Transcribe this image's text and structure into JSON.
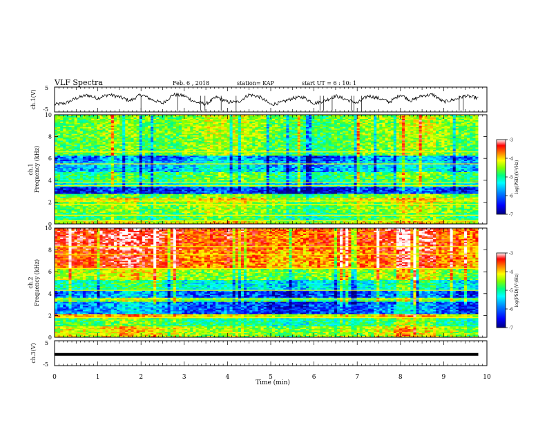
{
  "header": {
    "title": "VLF Spectra",
    "date": "Feb. 6 , 2018",
    "station": "station= KAP",
    "start_time": "start UT = 6 : 10: 1"
  },
  "colors": {
    "spectrogram_ramp": [
      "#000080",
      "#0000ff",
      "#0080ff",
      "#00ffff",
      "#00ff80",
      "#80ff00",
      "#ffff00",
      "#ff8000",
      "#ff0000",
      "#ffffff"
    ],
    "trace": "#000000"
  },
  "chart_data": [
    {
      "id": "ch1-voltage",
      "type": "line",
      "ylabel": "ch.1(V)",
      "ylim": [
        -5,
        5
      ],
      "yticks": [
        "5",
        "-5"
      ],
      "xlim": [
        0,
        10
      ],
      "x_min": [
        0,
        0.25,
        0.5,
        0.75,
        1.0,
        1.25,
        1.5,
        1.75,
        2.0,
        2.25,
        2.5,
        2.75,
        3.0,
        3.25,
        3.5,
        3.75,
        4.0,
        4.25,
        4.5,
        4.75,
        5.0,
        5.25,
        5.5,
        5.75,
        6.0,
        6.25,
        6.5,
        6.75,
        7.0,
        7.25,
        7.5,
        7.75,
        8.0,
        8.25,
        8.5,
        8.75,
        9.0,
        9.25,
        9.5,
        9.8
      ],
      "y_volts": [
        -2.0,
        -1.5,
        0.5,
        1.8,
        0.5,
        2.0,
        1.0,
        -0.5,
        2.0,
        0.0,
        -1.5,
        2.0,
        1.5,
        -1.0,
        -1.8,
        1.0,
        -1.0,
        -1.0,
        2.0,
        1.0,
        -2.0,
        -1.2,
        0.5,
        1.0,
        -1.5,
        -0.5,
        1.5,
        0.0,
        -1.5,
        1.5,
        0.5,
        -1.0,
        2.0,
        -0.5,
        1.5,
        2.0,
        -1.0,
        0.0,
        1.5,
        0.5
      ]
    },
    {
      "id": "ch1-spectrogram",
      "type": "heatmap",
      "ylabel": "Frequency (kHz)",
      "channel_label": "ch.1",
      "ylim": [
        0,
        10
      ],
      "yticks": [
        "0",
        "2",
        "4",
        "6",
        "8",
        "10"
      ],
      "xlim": [
        0,
        10
      ],
      "colorbar": {
        "label": "log(PSD)(V²/Hz)",
        "range": [
          -7,
          -3
        ],
        "ticks": [
          "-3",
          "-4",
          "-5",
          "-6",
          "-7"
        ]
      },
      "freq_bands_khz": [
        {
          "from": 0.0,
          "to": 0.3,
          "level": -4.5
        },
        {
          "from": 0.3,
          "to": 1.0,
          "level": -5.2
        },
        {
          "from": 1.0,
          "to": 2.0,
          "level": -4.9
        },
        {
          "from": 2.0,
          "to": 2.4,
          "level": -4.5
        },
        {
          "from": 2.4,
          "to": 2.8,
          "level": -5.0
        },
        {
          "from": 2.8,
          "to": 3.4,
          "level": -6.6
        },
        {
          "from": 3.4,
          "to": 3.9,
          "level": -5.6
        },
        {
          "from": 3.9,
          "to": 4.7,
          "level": -5.2
        },
        {
          "from": 4.7,
          "to": 5.8,
          "level": -5.9
        },
        {
          "from": 5.8,
          "to": 6.3,
          "level": -6.2
        },
        {
          "from": 6.3,
          "to": 8.0,
          "level": -5.0
        },
        {
          "from": 8.0,
          "to": 10.0,
          "level": -4.9
        }
      ],
      "tone_lines_khz": [
        0.3,
        0.8,
        1.8,
        2.1,
        3.8,
        3.5,
        5.5,
        6.6
      ],
      "time_trend": [
        0,
        0,
        0.05,
        0.05,
        0.0,
        0.0,
        0.05,
        0.1,
        0.1,
        0.05,
        0.0,
        -0.05,
        -0.05,
        0.0,
        0.05,
        0.05,
        0.1,
        0.1,
        0.05,
        0.0
      ]
    },
    {
      "id": "ch2-spectrogram",
      "type": "heatmap",
      "ylabel": "Frequency (kHz)",
      "channel_label": "ch.2",
      "ylim": [
        0,
        10
      ],
      "yticks": [
        "0",
        "2",
        "4",
        "6",
        "8",
        "10"
      ],
      "xlim": [
        0,
        10
      ],
      "colorbar": {
        "label": "log(PSD)(V²/Hz)",
        "range": [
          -7,
          -3
        ],
        "ticks": [
          "-3",
          "-4",
          "-5",
          "-6",
          "-7"
        ]
      },
      "freq_bands_khz": [
        {
          "from": 0.0,
          "to": 1.0,
          "level": -4.9
        },
        {
          "from": 1.0,
          "to": 1.8,
          "level": -5.5
        },
        {
          "from": 1.8,
          "to": 2.1,
          "level": -4.6
        },
        {
          "from": 2.1,
          "to": 3.3,
          "level": -6.5
        },
        {
          "from": 3.3,
          "to": 3.6,
          "level": -5.3
        },
        {
          "from": 3.6,
          "to": 4.3,
          "level": -6.5
        },
        {
          "from": 4.3,
          "to": 5.3,
          "level": -5.8
        },
        {
          "from": 5.3,
          "to": 6.2,
          "level": -5.0
        },
        {
          "from": 6.2,
          "to": 8.0,
          "level": -4.1
        },
        {
          "from": 8.0,
          "to": 10.0,
          "level": -3.9
        }
      ],
      "tone_lines_khz": [
        1.8,
        3.5,
        4.3,
        6.3,
        7.6,
        8.3
      ],
      "time_trend": [
        0.1,
        0.1,
        0.15,
        0.2,
        0.15,
        0.1,
        0.05,
        0.05,
        0.1,
        0.05,
        0.0,
        0.0,
        0.05,
        0.05,
        0.05,
        0.1,
        0.25,
        0.15,
        0.05,
        0.0
      ]
    },
    {
      "id": "ch3-voltage",
      "type": "line",
      "ylabel": "ch.3(V)",
      "ylim": [
        -5,
        5
      ],
      "yticks": [
        "5",
        "-5"
      ],
      "xlim": [
        0,
        10
      ],
      "x_min": [
        0,
        9.8
      ],
      "y_volts": [
        -0.5,
        -0.5
      ]
    }
  ],
  "xaxis": {
    "label": "Time (min)",
    "ticks": [
      "0",
      "1",
      "2",
      "3",
      "4",
      "5",
      "6",
      "7",
      "8",
      "9",
      "10"
    ]
  }
}
